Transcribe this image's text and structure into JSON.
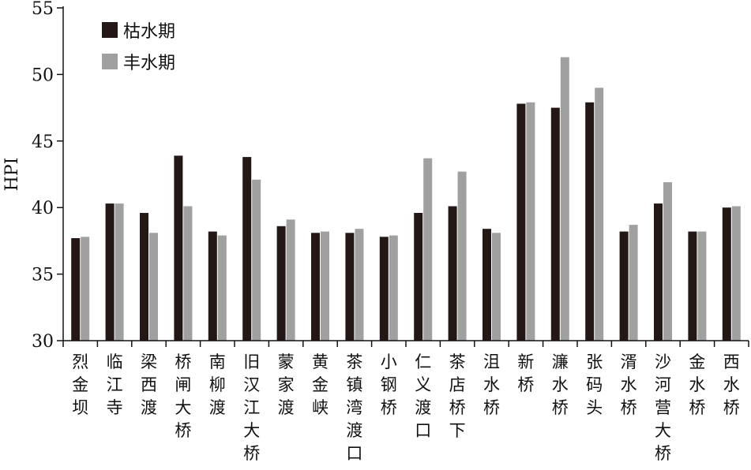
{
  "chart_data": {
    "type": "bar",
    "ylabel": "HPI",
    "ylim": [
      30,
      55
    ],
    "yticks": [
      30,
      35,
      40,
      45,
      50,
      55
    ],
    "grid": false,
    "legend_position": "top-left",
    "categories": [
      "烈金坝",
      "临江寺",
      "梁西渡",
      "桥闸大桥",
      "南柳渡",
      "旧汉江大桥",
      "蒙家渡",
      "黄金峡",
      "茶镇湾渡口",
      "小钢桥",
      "仁义渡口",
      "茶店桥下",
      "沮水桥",
      "新桥",
      "濂水桥",
      "张码头",
      "湑水桥",
      "沙河营大桥",
      "金水桥",
      "西水桥"
    ],
    "series": [
      {
        "name": "枯水期",
        "color": "#231815",
        "values": [
          37.7,
          40.3,
          39.6,
          43.9,
          38.2,
          43.8,
          38.6,
          38.1,
          38.1,
          37.8,
          39.6,
          40.1,
          38.4,
          47.8,
          47.5,
          47.9,
          38.2,
          40.3,
          38.2,
          40.0
        ]
      },
      {
        "name": "丰水期",
        "color": "#a0a0a0",
        "values": [
          37.8,
          40.3,
          38.1,
          40.1,
          37.9,
          42.1,
          39.1,
          38.2,
          38.4,
          37.9,
          43.7,
          42.7,
          38.1,
          47.9,
          51.3,
          49.0,
          38.7,
          41.9,
          38.2,
          40.1
        ]
      }
    ]
  }
}
